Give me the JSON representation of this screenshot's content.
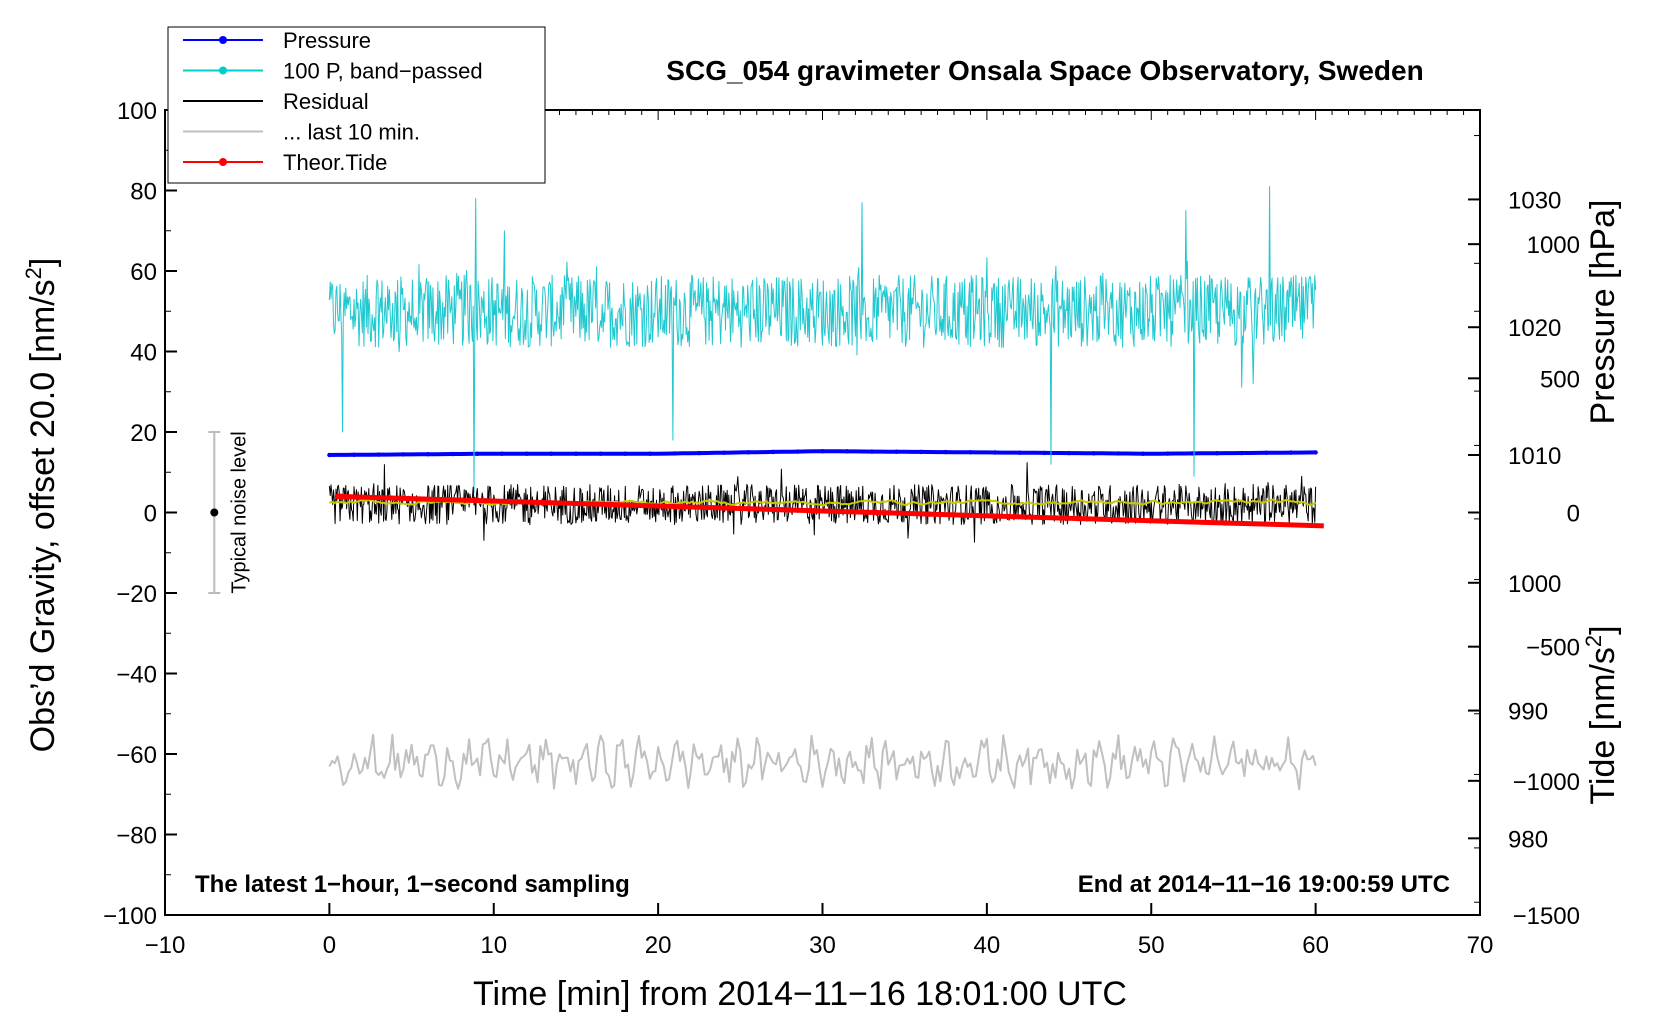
{
  "chart_data": {
    "type": "line",
    "title": "SCG_054 gravimeter Onsala Space Observatory, Sweden",
    "xlabel": "Time [min] from 2014−11−16 18:01:00 UTC",
    "ylabel_left_main": "Obs’d Gravity, offset 20.0 [nm/s",
    "ylabel_left_sup": "2",
    "ylabel_left_close": "]",
    "ylabel_right_pressure": "Pressure [hPa]",
    "ylabel_right_tide_main": "Tide [nm/s",
    "ylabel_right_tide_sup": "2",
    "ylabel_right_tide_close": "]",
    "xlim": [
      -10,
      70
    ],
    "ylim": [
      -100,
      100
    ],
    "pressure_lim": [
      974,
      1037
    ],
    "tide_lim": [
      -1500,
      1500
    ],
    "x_ticks": [
      -10,
      0,
      10,
      20,
      30,
      40,
      50,
      60,
      70
    ],
    "x_tick_labels": [
      "−10",
      "0",
      "10",
      "20",
      "30",
      "40",
      "50",
      "60",
      "70"
    ],
    "y_ticks": [
      -100,
      -80,
      -60,
      -40,
      -20,
      0,
      20,
      40,
      60,
      80,
      100
    ],
    "y_tick_labels": [
      "−100",
      "−80",
      "−60",
      "−40",
      "−20",
      "0",
      "20",
      "40",
      "60",
      "80",
      "100"
    ],
    "pressure_ticks": [
      980,
      990,
      1000,
      1010,
      1020,
      1030
    ],
    "pressure_tick_labels": [
      "980",
      "990",
      "1000",
      "1010",
      "1020",
      "1030"
    ],
    "tide_ticks": [
      1000,
      500,
      0,
      -500,
      -1000,
      -1500
    ],
    "tide_tick_labels": [
      "1000",
      "500",
      "0",
      "−500",
      "−1000",
      "−1500"
    ],
    "note_left": "The latest 1−hour, 1−second sampling",
    "note_right": "End at 2014−11−16 19:00:59 UTC",
    "noise_label": "Typical noise level",
    "noise_bar": {
      "x": -7.0,
      "center": 0,
      "low": -20,
      "high": 20
    },
    "legend": [
      {
        "label": "Pressure",
        "color": "#0000ff",
        "marker": true
      },
      {
        "label": "100 P, band−passed",
        "color": "#00cccc",
        "marker": true
      },
      {
        "label": "Residual",
        "color": "#000000",
        "marker": false
      },
      {
        "label": "... last 10 min.",
        "color": "#c0c0c0",
        "marker": false
      },
      {
        "label": "Theor.Tide",
        "color": "#ff0000",
        "marker": true
      }
    ],
    "series": [
      {
        "name": "Pressure",
        "axis": "pressure",
        "color": "#0000ff",
        "width": 4,
        "x": [
          0,
          10,
          20,
          30,
          40,
          50,
          60
        ],
        "y": [
          1010.0,
          1010.1,
          1010.1,
          1010.3,
          1010.2,
          1010.1,
          1010.2
        ]
      },
      {
        "name": "100 P, band−passed",
        "axis": "gravity",
        "color": "#20c8d0",
        "width": 1,
        "center": 50,
        "amplitude": 9,
        "spikes": [
          [
            0.8,
            20
          ],
          [
            8.8,
            5
          ],
          [
            20.9,
            18
          ],
          [
            43.9,
            12
          ],
          [
            52.6,
            9
          ],
          [
            8.9,
            78
          ],
          [
            32.4,
            77
          ],
          [
            57.2,
            81
          ],
          [
            52.1,
            75
          ]
        ],
        "x_start": 0,
        "x_end": 60
      },
      {
        "name": "Residual",
        "axis": "gravity",
        "color": "#000000",
        "width": 1,
        "center": 2,
        "amplitude": 5,
        "x_start": 0,
        "x_end": 60
      },
      {
        "name": "Residual smoothed",
        "axis": "gravity",
        "color": "#c8c800",
        "width": 2,
        "center": 2.5,
        "amplitude": 0.8,
        "x_start": 0,
        "x_end": 60
      },
      {
        "name": "... last 10 min.",
        "axis": "gravity",
        "color": "#c0c0c0",
        "width": 2,
        "center": -62,
        "amplitude": 5,
        "x_start": 0,
        "x_end": 60
      },
      {
        "name": "Theor.Tide",
        "axis": "tide",
        "color": "#ff0000",
        "width": 5,
        "x": [
          0.5,
          60.5
        ],
        "y": [
          60,
          -50
        ]
      }
    ]
  }
}
